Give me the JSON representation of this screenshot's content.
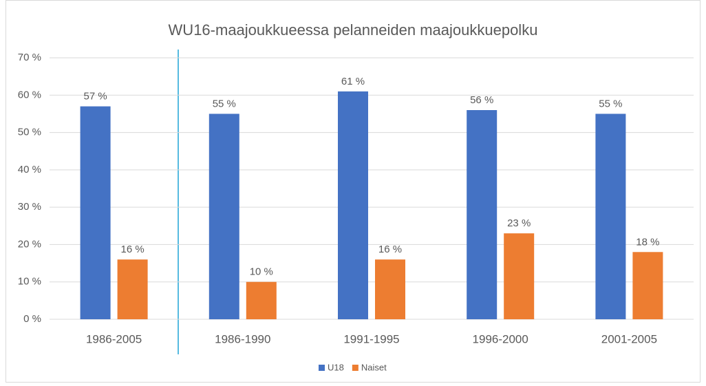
{
  "chart_data": {
    "type": "bar",
    "title": "WU16-maajoukkueessa pelanneiden maajoukkuepolku",
    "categories": [
      "1986-2005",
      "1986-1990",
      "1991-1995",
      "1996-2000",
      "2001-2005"
    ],
    "series": [
      {
        "name": "U18",
        "color": "#4472c4",
        "values": [
          57,
          55,
          61,
          56,
          55
        ],
        "value_labels": [
          "57 %",
          "55 %",
          "61 %",
          "56 %",
          "55 %"
        ]
      },
      {
        "name": "Naiset",
        "color": "#ed7d31",
        "values": [
          16,
          10,
          16,
          23,
          18
        ],
        "value_labels": [
          "16 %",
          "10 %",
          "16 %",
          "23 %",
          "18 %"
        ]
      }
    ],
    "ylim": [
      0,
      70
    ],
    "yticks": [
      {
        "value": 0,
        "label": "0 %"
      },
      {
        "value": 10,
        "label": "10 %"
      },
      {
        "value": 20,
        "label": "20 %"
      },
      {
        "value": 30,
        "label": "30 %"
      },
      {
        "value": 40,
        "label": "40 %"
      },
      {
        "value": 50,
        "label": "50 %"
      },
      {
        "value": 60,
        "label": "60 %"
      },
      {
        "value": 70,
        "label": "70 %"
      }
    ],
    "grid": true,
    "legend": "bottom"
  }
}
